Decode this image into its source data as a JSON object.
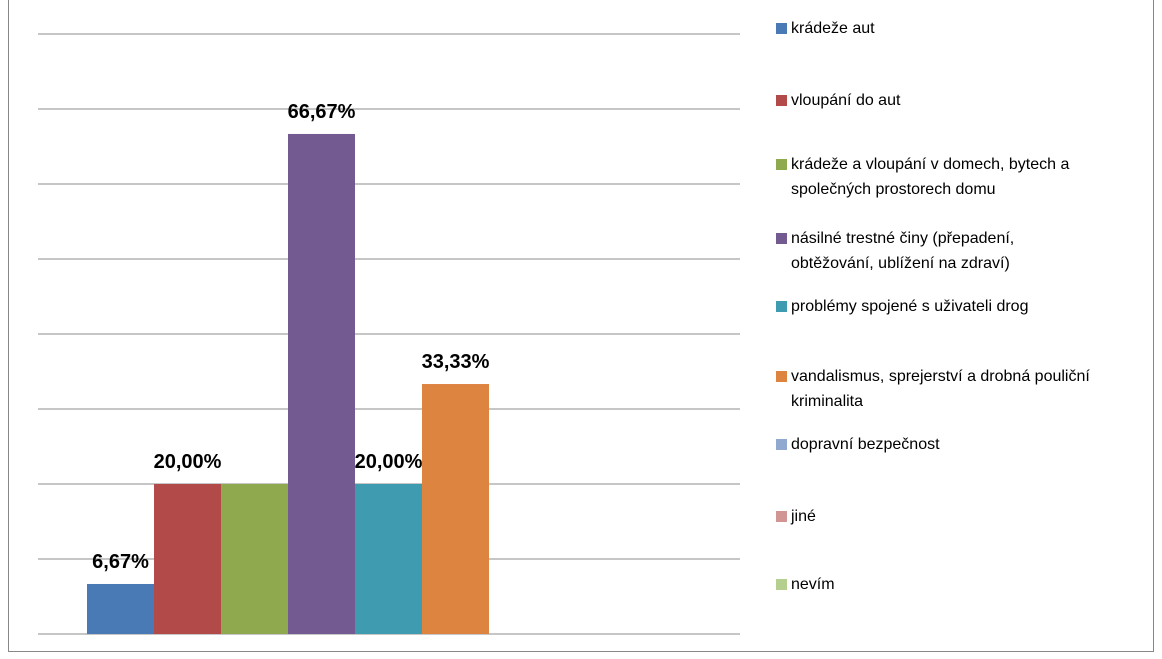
{
  "chart_data": {
    "type": "bar",
    "title": "",
    "xlabel": "",
    "ylabel": "",
    "ylim": [
      0,
      80
    ],
    "grid": true,
    "legend_position": "right",
    "series": [
      {
        "name": "krádeže aut",
        "value": 6.67,
        "label": "6,67%",
        "color": "#4a7ab5"
      },
      {
        "name": "vloupání do aut",
        "value": 20.0,
        "label": "20,00%",
        "color": "#b14a48"
      },
      {
        "name": "krádeže a vloupání v domech, bytech a společných prostorech domu",
        "value": 20.0,
        "label": "",
        "color": "#8fa94f"
      },
      {
        "name": "násilné trestné činy (přepadení, obtěžování, ublížení na zdraví)",
        "value": 66.67,
        "label": "66,67%",
        "color": "#735a91"
      },
      {
        "name": "problémy spojené s uživateli drog",
        "value": 20.0,
        "label": "20,00%",
        "color": "#3f9cb0"
      },
      {
        "name": "vandalismus, sprejerství a drobná pouliční kriminalita",
        "value": 33.33,
        "label": "33,33%",
        "color": "#dd8441"
      },
      {
        "name": "dopravní bezpečnost",
        "value": 0,
        "label": "",
        "color": "#92a9cf"
      },
      {
        "name": "jiné",
        "value": 0,
        "label": "",
        "color": "#d19593"
      },
      {
        "name": "nevím",
        "value": 0,
        "label": "",
        "color": "#b5cf8e"
      }
    ]
  },
  "legend_lines": [
    [
      "krádeže aut"
    ],
    [
      "vloupání do aut"
    ],
    [
      "krádeže a vloupání v domech, bytech a",
      "společných prostorech domu"
    ],
    [
      "násilné trestné činy (přepadení,",
      "obtěžování, ublížení na zdraví)"
    ],
    [
      "problémy spojené s uživateli drog"
    ],
    [
      "vandalismus, sprejerství a drobná pouliční",
      "kriminalita"
    ],
    [
      "dopravní bezpečnost"
    ],
    [
      "jiné"
    ],
    [
      "nevím"
    ]
  ]
}
